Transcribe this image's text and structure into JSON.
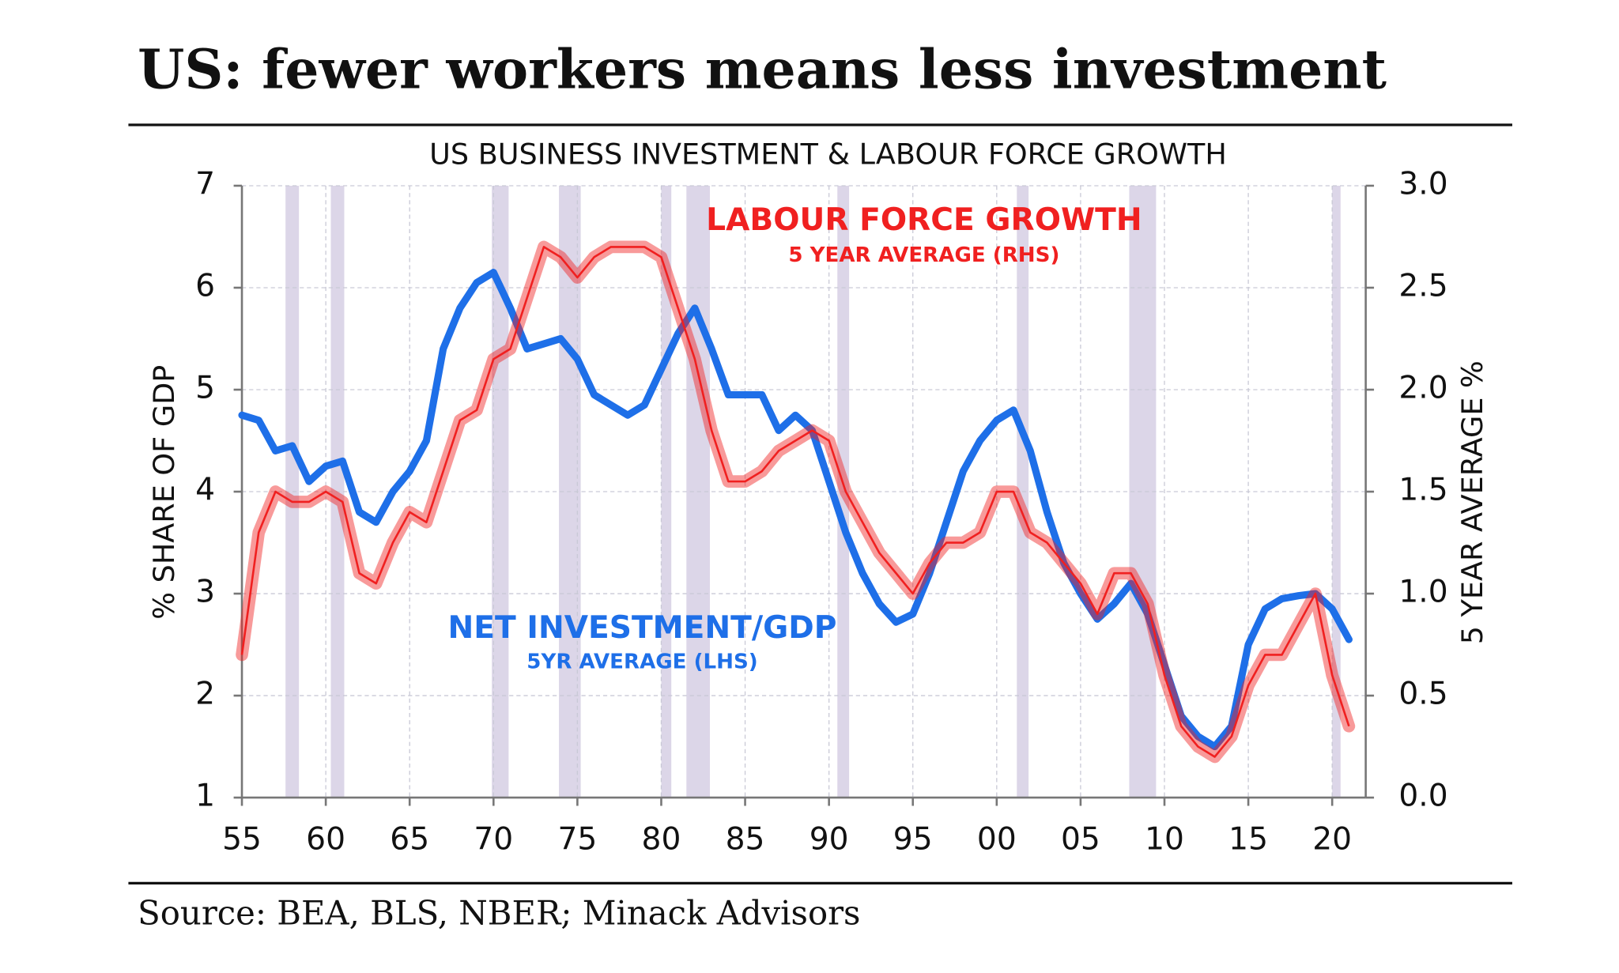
{
  "chart_data": {
    "type": "line",
    "title": "US: fewer workers means less investment",
    "subtitle": "US BUSINESS INVESTMENT & LABOUR FORCE GROWTH",
    "source": "Source: BEA, BLS, NBER; Minack Advisors",
    "ylabel": "% SHARE OF GDP",
    "y2label": "5 YEAR AVERAGE %",
    "annotations": [
      "LABOUR FORCE GROWTH",
      "5 YEAR AVERAGE (RHS)",
      "NET INVESTMENT/GDP",
      "5YR AVERAGE (LHS)"
    ],
    "xlim": [
      1955,
      2022
    ],
    "xticks": [
      {
        "value": 1955,
        "label": "55"
      },
      {
        "value": 1960,
        "label": "60"
      },
      {
        "value": 1965,
        "label": "65"
      },
      {
        "value": 1970,
        "label": "70"
      },
      {
        "value": 1975,
        "label": "75"
      },
      {
        "value": 1980,
        "label": "80"
      },
      {
        "value": 1985,
        "label": "85"
      },
      {
        "value": 1990,
        "label": "90"
      },
      {
        "value": 1995,
        "label": "95"
      },
      {
        "value": 2000,
        "label": "00"
      },
      {
        "value": 2005,
        "label": "05"
      },
      {
        "value": 2010,
        "label": "10"
      },
      {
        "value": 2015,
        "label": "15"
      },
      {
        "value": 2020,
        "label": "20"
      }
    ],
    "ylim": [
      1,
      7
    ],
    "yticks": [
      1,
      2,
      3,
      4,
      5,
      6,
      7
    ],
    "y2lim": [
      0,
      3
    ],
    "y2ticks": [
      {
        "value": 0,
        "label": "0.0"
      },
      {
        "value": 0.5,
        "label": "0.5"
      },
      {
        "value": 1,
        "label": "1.0"
      },
      {
        "value": 1.5,
        "label": "1.5"
      },
      {
        "value": 2,
        "label": "2.0"
      },
      {
        "value": 2.5,
        "label": "2.5"
      },
      {
        "value": 3,
        "label": "3.0"
      }
    ],
    "grid": true,
    "recessions": [
      [
        1957.6,
        1958.4
      ],
      [
        1960.3,
        1961.1
      ],
      [
        1969.9,
        1970.9
      ],
      [
        1973.9,
        1975.2
      ],
      [
        1980.0,
        1980.6
      ],
      [
        1981.5,
        1982.9
      ],
      [
        1990.5,
        1991.2
      ],
      [
        2001.2,
        2001.9
      ],
      [
        2007.9,
        2009.5
      ],
      [
        2020.0,
        2020.5
      ]
    ],
    "x": [
      1955,
      1956,
      1957,
      1958,
      1959,
      1960,
      1961,
      1962,
      1963,
      1964,
      1965,
      1966,
      1967,
      1968,
      1969,
      1970,
      1971,
      1972,
      1973,
      1974,
      1975,
      1976,
      1977,
      1978,
      1979,
      1980,
      1981,
      1982,
      1983,
      1984,
      1985,
      1986,
      1987,
      1988,
      1989,
      1990,
      1991,
      1992,
      1993,
      1994,
      1995,
      1996,
      1997,
      1998,
      1999,
      2000,
      2001,
      2002,
      2003,
      2004,
      2005,
      2006,
      2007,
      2008,
      2009,
      2010,
      2011,
      2012,
      2013,
      2014,
      2015,
      2016,
      2017,
      2018,
      2019,
      2020,
      2021
    ],
    "series": [
      {
        "name": "NET INVESTMENT/GDP",
        "color": "#1e6fe8",
        "axis": "y",
        "values": [
          4.75,
          4.7,
          4.4,
          4.45,
          4.1,
          4.25,
          4.3,
          3.8,
          3.7,
          4.0,
          4.2,
          4.5,
          5.4,
          5.8,
          6.05,
          6.15,
          5.8,
          5.4,
          5.45,
          5.5,
          5.3,
          4.95,
          4.85,
          4.75,
          4.85,
          5.2,
          5.55,
          5.8,
          5.4,
          4.95,
          4.95,
          4.95,
          4.6,
          4.75,
          4.6,
          4.1,
          3.6,
          3.2,
          2.9,
          2.72,
          2.8,
          3.2,
          3.7,
          4.2,
          4.5,
          4.7,
          4.8,
          4.4,
          3.8,
          3.3,
          3.0,
          2.75,
          2.9,
          3.1,
          2.8,
          2.3,
          1.8,
          1.6,
          1.5,
          1.7,
          2.5,
          2.85,
          2.95,
          2.98,
          3.0,
          2.85,
          2.55
        ]
      },
      {
        "name": "LABOUR FORCE GROWTH",
        "color": "#f02020",
        "axis": "y2",
        "values": [
          0.7,
          1.3,
          1.5,
          1.45,
          1.45,
          1.5,
          1.45,
          1.1,
          1.05,
          1.25,
          1.4,
          1.35,
          1.6,
          1.85,
          1.9,
          2.15,
          2.2,
          2.45,
          2.7,
          2.65,
          2.55,
          2.65,
          2.7,
          2.7,
          2.7,
          2.65,
          2.4,
          2.15,
          1.8,
          1.55,
          1.55,
          1.6,
          1.7,
          1.75,
          1.8,
          1.75,
          1.5,
          1.35,
          1.2,
          1.1,
          1.0,
          1.15,
          1.25,
          1.25,
          1.3,
          1.5,
          1.5,
          1.3,
          1.25,
          1.15,
          1.05,
          0.9,
          1.1,
          1.1,
          0.95,
          0.6,
          0.35,
          0.25,
          0.2,
          0.3,
          0.55,
          0.7,
          0.7,
          0.85,
          1.0,
          0.6,
          0.35
        ]
      }
    ]
  }
}
